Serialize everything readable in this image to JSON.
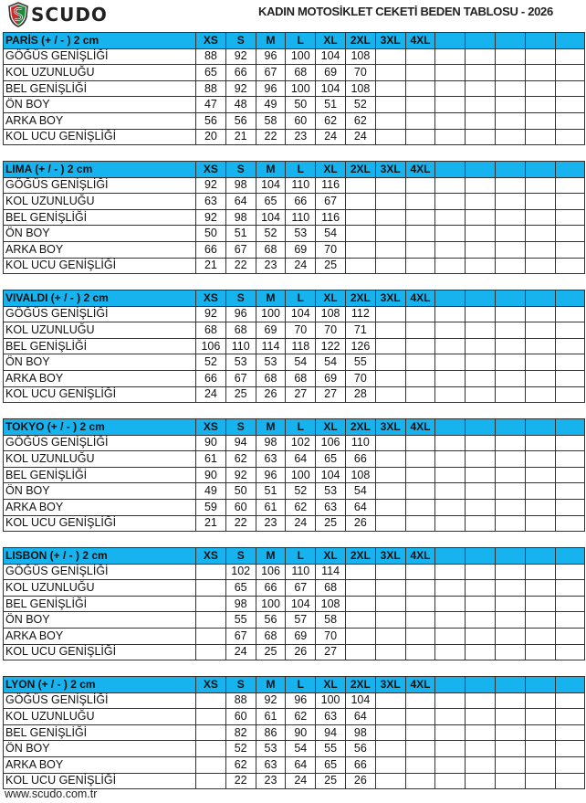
{
  "header": {
    "logo_text": "SCUDO",
    "title": "KADIN MOTOSİKLET CEKETİ BEDEN TABLOSU - 2026"
  },
  "colors": {
    "header_row": "#16b3ee",
    "grid": "#333333"
  },
  "sizes": [
    "XS",
    "S",
    "M",
    "L",
    "XL",
    "2XL",
    "3XL",
    "4XL"
  ],
  "tables": [
    {
      "name": "PARİS (+ / - ) 2 cm",
      "rows": [
        {
          "label": "GÖĞÜS GENİŞLİĞİ",
          "values": [
            "88",
            "92",
            "96",
            "100",
            "104",
            "108",
            "",
            ""
          ]
        },
        {
          "label": "KOL UZUNLUĞU",
          "values": [
            "65",
            "66",
            "67",
            "68",
            "69",
            "70",
            "",
            ""
          ]
        },
        {
          "label": "BEL GENİŞLİĞİ",
          "values": [
            "88",
            "92",
            "96",
            "100",
            "104",
            "108",
            "",
            ""
          ]
        },
        {
          "label": "ÖN BOY",
          "values": [
            "47",
            "48",
            "49",
            "50",
            "51",
            "52",
            "",
            ""
          ]
        },
        {
          "label": "ARKA BOY",
          "values": [
            "56",
            "56",
            "58",
            "60",
            "62",
            "62",
            "",
            ""
          ]
        },
        {
          "label": "KOL UCU GENİŞLİĞİ",
          "values": [
            "20",
            "21",
            "22",
            "23",
            "24",
            "24",
            "",
            ""
          ]
        }
      ]
    },
    {
      "name": "LIMA (+ / - ) 2 cm",
      "rows": [
        {
          "label": "GÖĞÜS GENİŞLİĞİ",
          "values": [
            "92",
            "98",
            "104",
            "110",
            "116",
            "",
            "",
            ""
          ]
        },
        {
          "label": "KOL UZUNLUĞU",
          "values": [
            "63",
            "64",
            "65",
            "66",
            "67",
            "",
            "",
            ""
          ]
        },
        {
          "label": "BEL GENİŞLİĞİ",
          "values": [
            "92",
            "98",
            "104",
            "110",
            "116",
            "",
            "",
            ""
          ]
        },
        {
          "label": "ÖN BOY",
          "values": [
            "50",
            "51",
            "52",
            "53",
            "54",
            "",
            "",
            ""
          ]
        },
        {
          "label": "ARKA BOY",
          "values": [
            "66",
            "67",
            "68",
            "69",
            "70",
            "",
            "",
            ""
          ]
        },
        {
          "label": "KOL UCU GENİŞLİĞİ",
          "values": [
            "21",
            "22",
            "23",
            "24",
            "25",
            "",
            "",
            ""
          ]
        }
      ]
    },
    {
      "name": "VIVALDI (+ / - ) 2 cm",
      "rows": [
        {
          "label": "GÖĞÜS GENİŞLİĞİ",
          "values": [
            "92",
            "96",
            "100",
            "104",
            "108",
            "112",
            "",
            ""
          ]
        },
        {
          "label": "KOL UZUNLUĞU",
          "values": [
            "68",
            "68",
            "69",
            "70",
            "70",
            "71",
            "",
            ""
          ]
        },
        {
          "label": "BEL GENİŞLİĞİ",
          "values": [
            "106",
            "110",
            "114",
            "118",
            "122",
            "126",
            "",
            ""
          ]
        },
        {
          "label": "ÖN BOY",
          "values": [
            "52",
            "53",
            "53",
            "54",
            "54",
            "55",
            "",
            ""
          ]
        },
        {
          "label": "ARKA BOY",
          "values": [
            "66",
            "67",
            "68",
            "68",
            "69",
            "70",
            "",
            ""
          ]
        },
        {
          "label": "KOL UCU GENİŞLİĞİ",
          "values": [
            "24",
            "25",
            "26",
            "27",
            "27",
            "28",
            "",
            ""
          ]
        }
      ]
    },
    {
      "name": "TOKYO (+ / - ) 2 cm",
      "rows": [
        {
          "label": "GÖĞÜS GENİŞLİĞİ",
          "values": [
            "90",
            "94",
            "98",
            "102",
            "106",
            "110",
            "",
            ""
          ]
        },
        {
          "label": "KOL UZUNLUĞU",
          "values": [
            "61",
            "62",
            "63",
            "64",
            "65",
            "66",
            "",
            ""
          ]
        },
        {
          "label": "BEL GENİŞLİĞİ",
          "values": [
            "90",
            "92",
            "96",
            "100",
            "104",
            "108",
            "",
            ""
          ]
        },
        {
          "label": "ÖN BOY",
          "values": [
            "49",
            "50",
            "51",
            "52",
            "53",
            "54",
            "",
            ""
          ]
        },
        {
          "label": "ARKA BOY",
          "values": [
            "59",
            "60",
            "61",
            "62",
            "63",
            "64",
            "",
            ""
          ]
        },
        {
          "label": "KOL UCU GENİŞLİĞİ",
          "values": [
            "21",
            "22",
            "23",
            "24",
            "25",
            "26",
            "",
            ""
          ]
        }
      ]
    },
    {
      "name": "LISBON (+ / - ) 2 cm",
      "rows": [
        {
          "label": "GÖĞÜS GENİŞLİĞİ",
          "values": [
            "",
            "102",
            "106",
            "110",
            "114",
            "",
            "",
            ""
          ]
        },
        {
          "label": "KOL UZUNLUĞU",
          "values": [
            "",
            "65",
            "66",
            "67",
            "68",
            "",
            "",
            ""
          ]
        },
        {
          "label": "BEL GENİŞLİĞİ",
          "values": [
            "",
            "98",
            "100",
            "104",
            "108",
            "",
            "",
            ""
          ]
        },
        {
          "label": "ÖN BOY",
          "values": [
            "",
            "55",
            "56",
            "57",
            "58",
            "",
            "",
            ""
          ]
        },
        {
          "label": "ARKA BOY",
          "values": [
            "",
            "67",
            "68",
            "69",
            "70",
            "",
            "",
            ""
          ]
        },
        {
          "label": "KOL UCU GENİŞLİĞİ",
          "values": [
            "",
            "24",
            "25",
            "26",
            "27",
            "",
            "",
            ""
          ]
        }
      ]
    },
    {
      "name": "LYON (+ / - ) 2 cm",
      "rows": [
        {
          "label": "GÖĞÜS GENİŞLİĞİ",
          "values": [
            "",
            "88",
            "92",
            "96",
            "100",
            "104",
            "",
            ""
          ]
        },
        {
          "label": "KOL UZUNLUĞU",
          "values": [
            "",
            "60",
            "61",
            "62",
            "63",
            "64",
            "",
            ""
          ]
        },
        {
          "label": "BEL GENİŞLİĞİ",
          "values": [
            "",
            "82",
            "86",
            "90",
            "94",
            "98",
            "",
            ""
          ]
        },
        {
          "label": "ÖN BOY",
          "values": [
            "",
            "52",
            "53",
            "54",
            "55",
            "56",
            "",
            ""
          ]
        },
        {
          "label": "ARKA BOY",
          "values": [
            "",
            "62",
            "63",
            "64",
            "65",
            "66",
            "",
            ""
          ]
        },
        {
          "label": "KOL UCU GENİŞLİĞİ",
          "values": [
            "",
            "22",
            "23",
            "24",
            "25",
            "26",
            "",
            ""
          ]
        }
      ]
    }
  ],
  "footer": {
    "website": "www.scudo.com.tr"
  }
}
